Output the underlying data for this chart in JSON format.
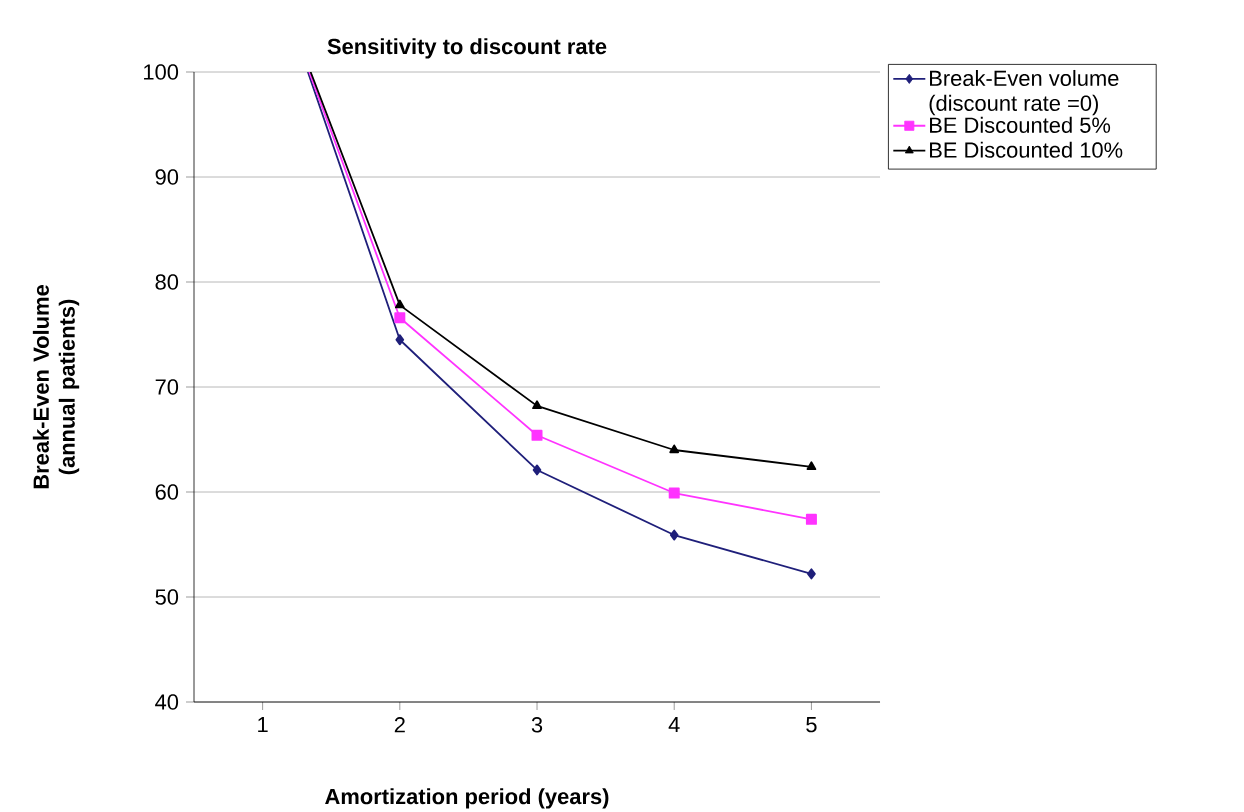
{
  "chart_data": {
    "type": "line",
    "title": "Sensitivity to discount rate",
    "xlabel": "Amortization period (years)",
    "ylabel": "Break-Even Volume (annual patients)",
    "xlim": [
      0.5,
      5.5
    ],
    "xticks": [
      1,
      2,
      3,
      4,
      5
    ],
    "ylim": [
      40,
      100
    ],
    "yticks": [
      40,
      50,
      60,
      70,
      80,
      90,
      100
    ],
    "grid": "y",
    "legend": "right",
    "series": [
      {
        "name": "Break-Even volume (discount rate =0)",
        "color": "#1f1f7a",
        "marker": "diamond",
        "x": [
          1.33,
          2,
          3,
          4,
          5
        ],
        "values": [
          100,
          74.5,
          62.1,
          55.9,
          52.2
        ]
      },
      {
        "name": "BE Discounted 5%",
        "color": "#ff33ff",
        "marker": "square",
        "x": [
          1.34,
          2,
          3,
          4,
          5
        ],
        "values": [
          100,
          76.6,
          65.4,
          59.9,
          57.4
        ]
      },
      {
        "name": "BE Discounted 10%",
        "color": "#000000",
        "marker": "triangle",
        "x": [
          1.35,
          2,
          3,
          4,
          5
        ],
        "values": [
          100,
          77.8,
          68.2,
          64.0,
          62.4
        ]
      }
    ]
  }
}
